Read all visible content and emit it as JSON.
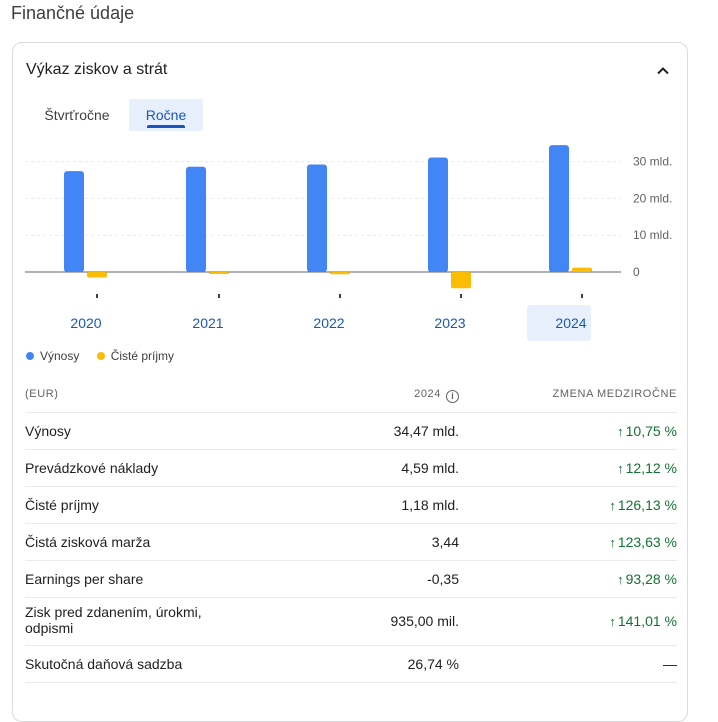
{
  "section_title": "Finančné údaje",
  "card": {
    "title": "Výkaz ziskov a strát",
    "tabs": [
      {
        "label": "Štvrťročne",
        "active": false
      },
      {
        "label": "Ročne",
        "active": true
      }
    ]
  },
  "colors": {
    "revenue": "#4285f4",
    "net_income": "#fbbc04",
    "positive": "#137333",
    "accent": "#1a56c2",
    "selected_bg": "#e8f0fe"
  },
  "legend": {
    "revenue": "Výnosy",
    "net_income": "Čisté príjmy"
  },
  "chart_data": {
    "type": "bar",
    "categories": [
      "2020",
      "2021",
      "2022",
      "2023",
      "2024"
    ],
    "selected_category": "2024",
    "series": [
      {
        "name": "Výnosy",
        "values": [
          27.4,
          28.6,
          29.2,
          31.1,
          34.47
        ]
      },
      {
        "name": "Čisté príjmy",
        "values": [
          -1.5,
          -0.5,
          -0.6,
          -4.4,
          1.18
        ]
      }
    ],
    "y_ticks": [
      "30 mld.",
      "20 mld.",
      "10 mld.",
      "0"
    ],
    "y_tick_values": [
      30,
      20,
      10,
      0
    ],
    "ylim": [
      -5,
      35
    ],
    "unit": "mld. EUR",
    "legend_position": "bottom-left"
  },
  "table": {
    "headers": {
      "currency": "(EUR)",
      "year": "2024",
      "change": "ZMENA MEDZIROČNE"
    },
    "info_icon": "info-icon",
    "rows": [
      {
        "label": "Výnosy",
        "value": "34,47 mld.",
        "change": "10,75 %",
        "direction": "up"
      },
      {
        "label": "Prevádzkové náklady",
        "value": "4,59 mld.",
        "change": "12,12 %",
        "direction": "up"
      },
      {
        "label": "Čisté príjmy",
        "value": "1,18 mld.",
        "change": "126,13 %",
        "direction": "up"
      },
      {
        "label": "Čistá zisková marža",
        "value": "3,44",
        "change": "123,63 %",
        "direction": "up"
      },
      {
        "label": "Earnings per share",
        "value": "-0,35",
        "change": "93,28 %",
        "direction": "up"
      },
      {
        "label": "Zisk pred zdanením, úrokmi, odpismi",
        "value": "935,00 mil.",
        "change": "141,01 %",
        "direction": "up"
      },
      {
        "label": "Skutočná daňová sadzba",
        "value": "26,74 %",
        "change": "—",
        "direction": "none"
      }
    ]
  }
}
